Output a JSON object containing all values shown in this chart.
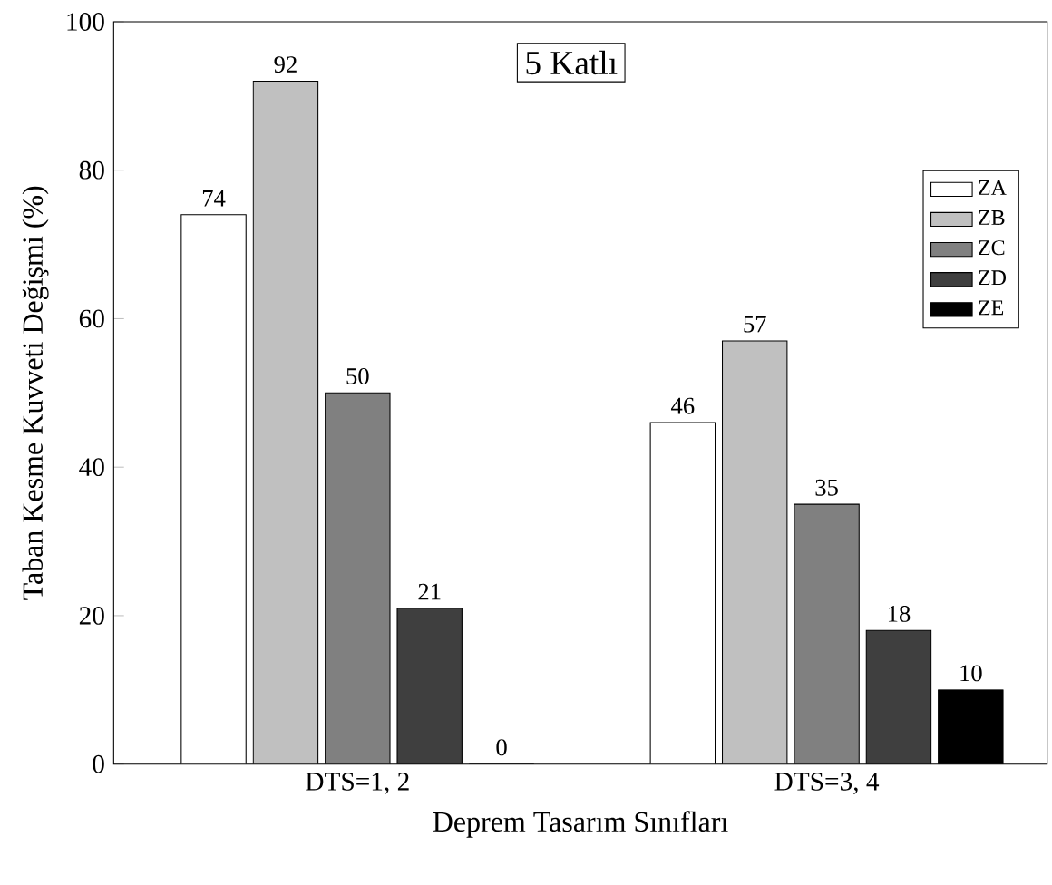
{
  "chart_data": {
    "type": "bar",
    "title": "5 Katlı",
    "xlabel": "Deprem Tasarım Sınıfları",
    "ylabel": "Taban Kesme Kuvveti Değişmi (%)",
    "categories": [
      "DTS=1, 2",
      "DTS=3, 4"
    ],
    "series": [
      {
        "name": "ZA",
        "color": "#ffffff",
        "values": [
          74,
          46
        ]
      },
      {
        "name": "ZB",
        "color": "#c0c0c0",
        "values": [
          92,
          57
        ]
      },
      {
        "name": "ZC",
        "color": "#808080",
        "values": [
          50,
          35
        ]
      },
      {
        "name": "ZD",
        "color": "#3f3f3f",
        "values": [
          21,
          18
        ]
      },
      {
        "name": "ZE",
        "color": "#000000",
        "values": [
          0,
          10
        ]
      }
    ],
    "ylim": [
      0,
      100
    ],
    "yticks": [
      0,
      20,
      40,
      60,
      80,
      100
    ],
    "data_labels": true,
    "legend": "top right"
  }
}
